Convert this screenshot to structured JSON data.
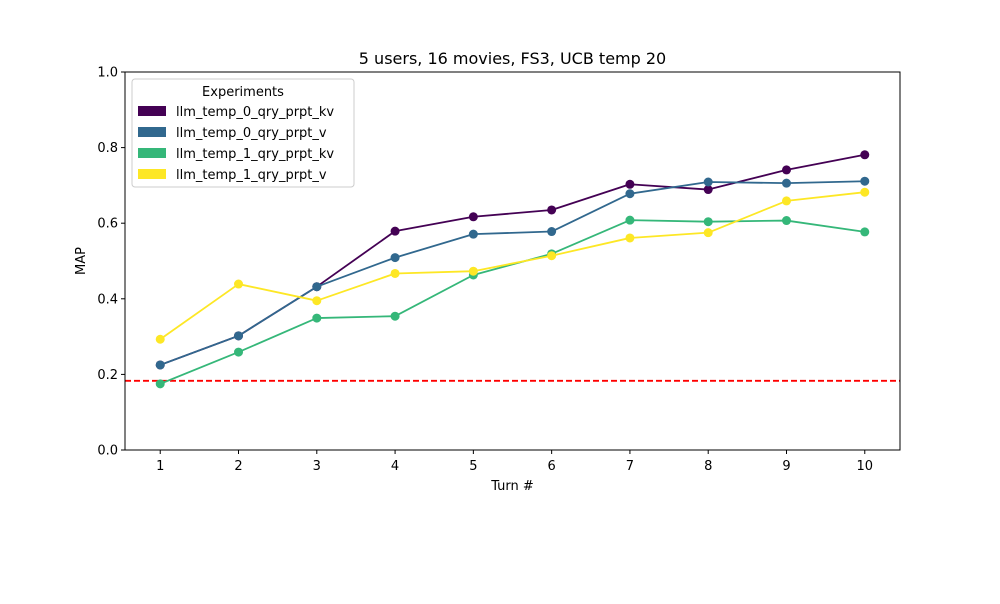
{
  "chart_data": {
    "type": "line",
    "title": "5 users, 16 movies, FS3, UCB temp 20",
    "xlabel": "Turn #",
    "ylabel": "MAP",
    "xlim": [
      0.55,
      10.45
    ],
    "ylim": [
      0.0,
      1.0
    ],
    "x_ticks": [
      1,
      2,
      3,
      4,
      5,
      6,
      7,
      8,
      9,
      10
    ],
    "y_ticks": [
      "0.0",
      "0.2",
      "0.4",
      "0.6",
      "0.8",
      "1.0"
    ],
    "grid": false,
    "x": [
      1,
      2,
      3,
      4,
      5,
      6,
      7,
      8,
      9,
      10
    ],
    "series": [
      {
        "name": "llm_temp_0_qry_prpt_kv",
        "color": "#440154",
        "values": [
          0.225,
          0.302,
          0.432,
          0.579,
          0.617,
          0.635,
          0.703,
          0.689,
          0.741,
          0.781
        ]
      },
      {
        "name": "llm_temp_0_qry_prpt_v",
        "color": "#31688e",
        "values": [
          0.225,
          0.302,
          0.432,
          0.509,
          0.571,
          0.578,
          0.678,
          0.709,
          0.706,
          0.711
        ]
      },
      {
        "name": "llm_temp_1_qry_prpt_kv",
        "color": "#35b779",
        "values": [
          0.175,
          0.259,
          0.349,
          0.354,
          0.463,
          0.519,
          0.608,
          0.604,
          0.607,
          0.577
        ]
      },
      {
        "name": "llm_temp_1_qry_prpt_v",
        "color": "#fde725",
        "values": [
          0.293,
          0.439,
          0.395,
          0.467,
          0.473,
          0.514,
          0.561,
          0.575,
          0.659,
          0.682
        ]
      }
    ],
    "reference_line": {
      "y": 0.183,
      "color": "#ff0000",
      "style": "dashed"
    },
    "legend": {
      "title": "Experiments",
      "placement": "upper-left"
    }
  }
}
